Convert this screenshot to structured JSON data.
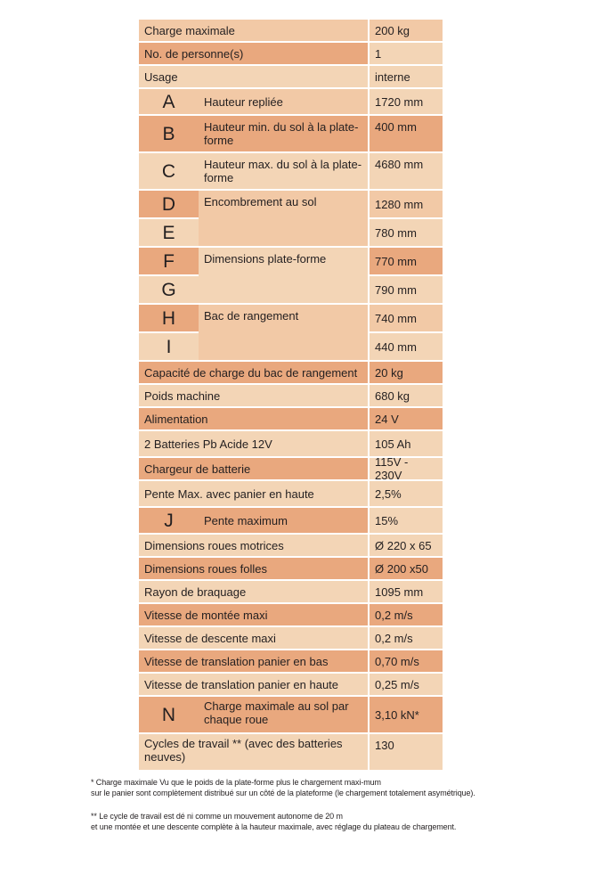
{
  "colors": {
    "light": "#f2c9a6",
    "medium": "#e9a87e",
    "pale": "#f3d5b6"
  },
  "rows": [
    {
      "label": "Charge maximale",
      "value": "200 kg"
    },
    {
      "label": "No. de personne(s)",
      "value": "1"
    },
    {
      "label": "Usage",
      "value": "interne"
    }
  ],
  "lettered": {
    "A": {
      "letter": "A",
      "label": "Hauteur repliée",
      "value": "1720 mm"
    },
    "B": {
      "letter": "B",
      "label": "Hauteur min. du sol à la plate-forme",
      "value": "400 mm"
    },
    "C": {
      "letter": "C",
      "label": "Hauteur max. du sol à la plate-forme",
      "value": "4680 mm"
    },
    "D": {
      "letter": "D",
      "value": "1280 mm"
    },
    "E": {
      "letter": "E",
      "value": "780 mm"
    },
    "DE_label": "Encombrement au sol",
    "F": {
      "letter": "F",
      "value": "770 mm"
    },
    "G": {
      "letter": "G",
      "value": "790 mm"
    },
    "FG_label": "Dimensions plate-forme",
    "H": {
      "letter": "H",
      "value": "740 mm"
    },
    "I": {
      "letter": "I",
      "value": "440 mm"
    },
    "HI_label": "Bac de rangement"
  },
  "rows2": [
    {
      "label": "Capacité de charge du bac de rangement",
      "value": "20 kg"
    },
    {
      "label": "Poids machine",
      "value": "680 kg"
    },
    {
      "label": "Alimentation",
      "value": "24 V"
    },
    {
      "label": " 2 Batteries Pb Acide 12V",
      "value": "105 Ah"
    },
    {
      "label": "Chargeur de batterie",
      "value": "115V - 230V"
    },
    {
      "label": "Pente Max. avec panier en haute",
      "value": "2,5%"
    }
  ],
  "J": {
    "letter": "J",
    "label": "Pente maximum",
    "value": "15%"
  },
  "rows3": [
    {
      "label": "Dimensions roues motrices",
      "value": "Ø 220 x 65"
    },
    {
      "label": "Dimensions roues folles",
      "value": "Ø  200 x50"
    },
    {
      "label": "Rayon de braquage",
      "value": "1095 mm"
    },
    {
      "label": "Vitesse de montée maxi",
      "value": "0,2 m/s"
    },
    {
      "label": "Vitesse de descente maxi",
      "value": "0,2 m/s"
    },
    {
      "label": "Vitesse de translation panier en bas",
      "value": "0,70 m/s"
    },
    {
      "label": "Vitesse de translation panier en haute",
      "value": "0,25 m/s"
    }
  ],
  "N": {
    "letter": "N",
    "label": "Charge maximale au sol par chaque roue",
    "value": "3,10 kN*"
  },
  "cycles": {
    "label": "Cycles de travail ** (avec des batteries neuves)",
    "value": "130"
  },
  "notes": {
    "n1a": "* Charge maximale Vu que le poids de la plate-forme plus le chargement maxi-mum",
    "n1b": " sur le panier sont complètement distribué sur un côté de la plateforme (le chargement totalement asymétrique).",
    "n2a": "** Le cycle de travail est dé ni comme un mouvement autonome de 20 m",
    "n2b": "et une montée et une descente complète à la hauteur maximale, avec réglage du plateau de chargement."
  }
}
